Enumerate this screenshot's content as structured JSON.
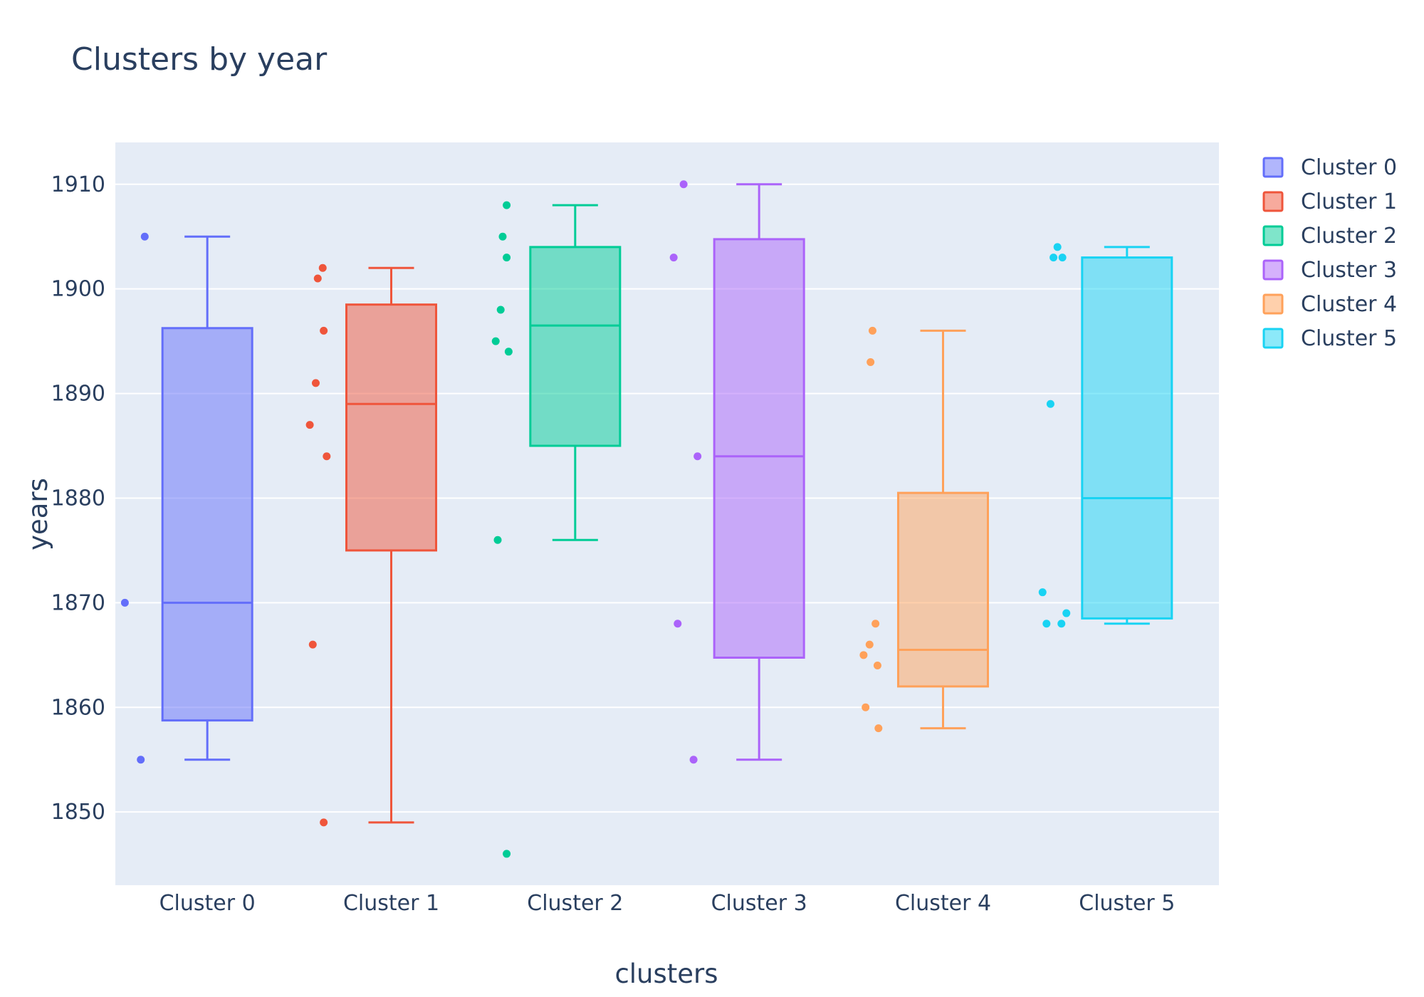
{
  "chart_data": {
    "type": "box",
    "title": "Clusters by year",
    "xlabel": "clusters",
    "ylabel": "years",
    "categories": [
      "Cluster 0",
      "Cluster 1",
      "Cluster 2",
      "Cluster 3",
      "Cluster 4",
      "Cluster 5"
    ],
    "y_ticks": [
      1850,
      1860,
      1870,
      1880,
      1890,
      1900,
      1910
    ],
    "ylim": [
      1843,
      1914
    ],
    "grid": true,
    "legend": "right",
    "series": [
      {
        "name": "Cluster 0",
        "color": "#636efa",
        "box": {
          "lowerfence": 1855,
          "q1": 1858.75,
          "median": 1870,
          "q3": 1896.25,
          "upperfence": 1905
        },
        "points": [
          1905,
          1870,
          1855
        ]
      },
      {
        "name": "Cluster 1",
        "color": "#ef553b",
        "box": {
          "lowerfence": 1849,
          "q1": 1875,
          "median": 1889,
          "q3": 1898.5,
          "upperfence": 1902
        },
        "points": [
          1902,
          1901,
          1896,
          1891,
          1887,
          1884,
          1866,
          1849
        ]
      },
      {
        "name": "Cluster 2",
        "color": "#00cc96",
        "box": {
          "lowerfence": 1876,
          "q1": 1885,
          "median": 1896.5,
          "q3": 1904,
          "upperfence": 1908
        },
        "points": [
          1908,
          1905,
          1903,
          1898,
          1895,
          1894,
          1876,
          1846
        ]
      },
      {
        "name": "Cluster 3",
        "color": "#ab63fa",
        "box": {
          "lowerfence": 1855,
          "q1": 1864.75,
          "median": 1884,
          "q3": 1904.75,
          "upperfence": 1910
        },
        "points": [
          1910,
          1903,
          1884,
          1868,
          1855
        ]
      },
      {
        "name": "Cluster 4",
        "color": "#ffa15a",
        "box": {
          "lowerfence": 1858,
          "q1": 1862,
          "median": 1865.5,
          "q3": 1880.5,
          "upperfence": 1896
        },
        "points": [
          1896,
          1893,
          1868,
          1866,
          1865,
          1864,
          1860,
          1858
        ]
      },
      {
        "name": "Cluster 5",
        "color": "#19d3f3",
        "box": {
          "lowerfence": 1868,
          "q1": 1868.5,
          "median": 1880,
          "q3": 1903,
          "upperfence": 1904
        },
        "points": [
          1904,
          1903,
          1903,
          1889,
          1871,
          1869,
          1868,
          1868
        ]
      }
    ]
  }
}
